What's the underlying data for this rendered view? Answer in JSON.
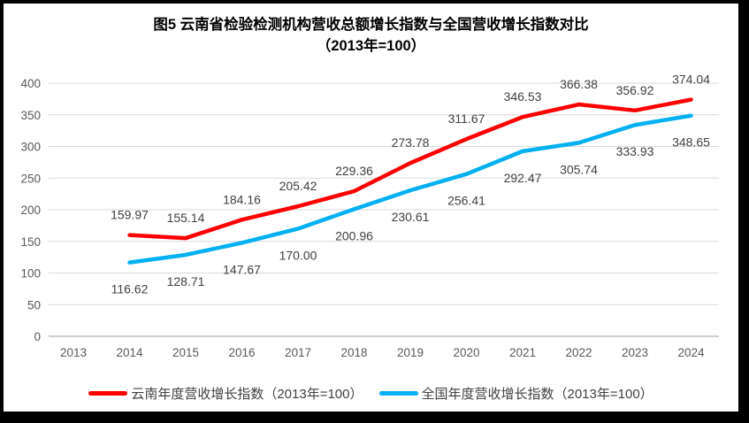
{
  "title": {
    "line1": "图5  云南省检验检测机构营收总额增长指数与全国营收增长指数对比",
    "line2": "（2013年=100）"
  },
  "chart_data": {
    "type": "line",
    "x": [
      2013,
      2014,
      2015,
      2016,
      2017,
      2018,
      2019,
      2020,
      2021,
      2022,
      2023,
      2024
    ],
    "series": [
      {
        "key": "yunnan",
        "name": "云南年度营收增长指数（2013年=100）",
        "color": "#FF0000",
        "values": [
          null,
          159.97,
          155.14,
          184.16,
          205.42,
          229.36,
          273.78,
          311.67,
          346.53,
          366.38,
          356.92,
          374.04
        ]
      },
      {
        "key": "national",
        "name": "全国年度营收增长指数（2013年=100）",
        "color": "#00B0F0",
        "values": [
          null,
          116.62,
          128.71,
          147.67,
          170.0,
          200.96,
          230.61,
          256.41,
          292.47,
          305.74,
          333.93,
          348.65
        ]
      }
    ],
    "xlabel": "",
    "ylabel": "",
    "ylim": [
      0,
      400
    ],
    "ytick_step": 50,
    "grid": true,
    "legend_position": "bottom",
    "value_labels": true,
    "value_label_decimals": 2
  },
  "style": {
    "background": "#FFFFFF",
    "frame_color": "#000000",
    "gridline_color": "#D9D9D9",
    "axis_line_color": "#BFBFBF",
    "axis_tick_color": "#595959",
    "data_label_color": "#404040",
    "title_color": "#000000",
    "legend_text_color": "#404040"
  }
}
